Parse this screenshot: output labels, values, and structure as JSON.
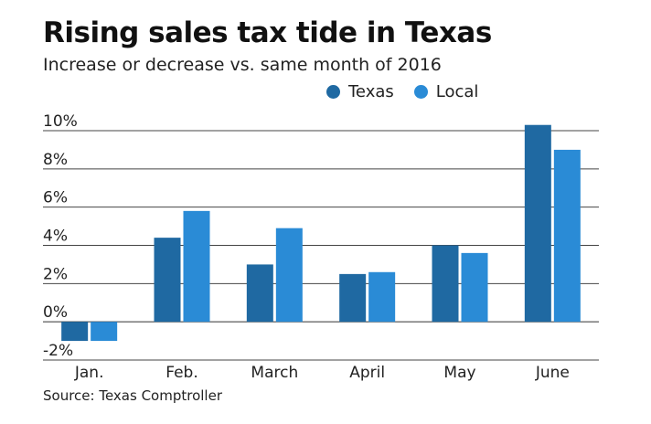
{
  "header": {
    "title": "Rising sales tax tide in Texas",
    "subtitle": "Increase or decrease vs. same month of 2016"
  },
  "legend": {
    "items": [
      {
        "label": "Texas",
        "color": "#1f69a2"
      },
      {
        "label": "Local",
        "color": "#2a8bd6"
      }
    ]
  },
  "source": "Source: Texas Comptroller",
  "chart_data": {
    "type": "bar",
    "title": "Rising sales tax tide in Texas",
    "subtitle": "Increase or decrease vs. same month of 2016",
    "categories": [
      "Jan.",
      "Feb.",
      "March",
      "April",
      "May",
      "June"
    ],
    "series": [
      {
        "name": "Texas",
        "color": "#1f69a2",
        "values": [
          -1.0,
          4.4,
          3.0,
          2.5,
          4.0,
          10.3
        ]
      },
      {
        "name": "Local",
        "color": "#2a8bd6",
        "values": [
          -1.0,
          5.8,
          4.9,
          2.6,
          3.6,
          9.0
        ]
      }
    ],
    "yticks": [
      -2,
      0,
      2,
      4,
      6,
      8,
      10
    ],
    "ytick_labels": [
      "-2%",
      "0%",
      "2%",
      "4%",
      "6%",
      "8%",
      "10%"
    ],
    "ylim": [
      -2,
      10
    ],
    "grid": true,
    "legend_position": "top-right",
    "xlabel": "",
    "ylabel": ""
  }
}
